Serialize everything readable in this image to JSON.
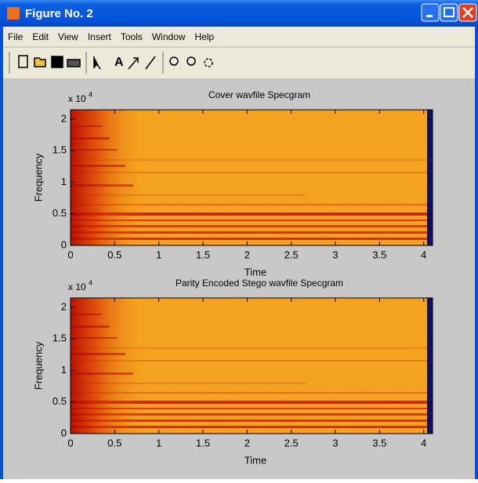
{
  "window": {
    "title": "Figure No. 2",
    "menu": [
      "File",
      "Edit",
      "View",
      "Insert",
      "Tools",
      "Window",
      "Help"
    ]
  },
  "chart_data": [
    {
      "type": "spectrogram",
      "title": "Cover wavfile Specgram",
      "x_label": "Time",
      "y_label": "Frequency",
      "y_exponent": "x 10",
      "y_exponent_power": "4",
      "xlim": [
        0,
        4.1
      ],
      "xticks": [
        0,
        0.5,
        1,
        1.5,
        2,
        2.5,
        3,
        3.5,
        4
      ],
      "ylim": [
        0,
        2.15
      ],
      "yticks": [
        0,
        0.5,
        1,
        1.5,
        2
      ]
    },
    {
      "type": "spectrogram",
      "title": "Parity Encoded Stego wavfile Specgram",
      "x_label": "Time",
      "y_label": "Frequency",
      "y_exponent": "x 10",
      "y_exponent_power": "4",
      "xlim": [
        0,
        4.1
      ],
      "xticks": [
        0,
        0.5,
        1,
        1.5,
        2,
        2.5,
        3,
        3.5,
        4
      ],
      "ylim": [
        0,
        2.15
      ],
      "yticks": [
        0,
        0.5,
        1,
        1.5,
        2
      ]
    }
  ]
}
